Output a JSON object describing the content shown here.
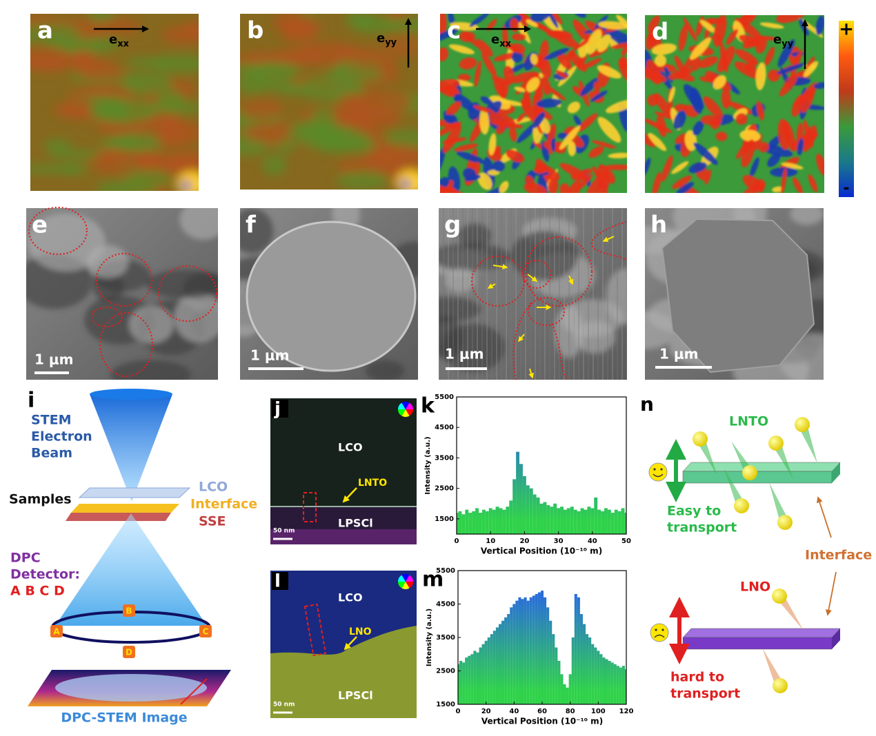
{
  "strain_maps": [
    {
      "label": "a",
      "axis": "e",
      "axis_sub": "xx"
    },
    {
      "label": "b",
      "axis": "e",
      "axis_sub": "yy"
    },
    {
      "label": "c",
      "axis": "e",
      "axis_sub": "xx"
    },
    {
      "label": "d",
      "axis": "e",
      "axis_sub": "yy"
    }
  ],
  "colorbar": {
    "max_label": "+",
    "min_label": "-"
  },
  "sem_images": [
    {
      "label": "e",
      "scale_bar": "1 μm"
    },
    {
      "label": "f",
      "scale_bar": "1 μm"
    },
    {
      "label": "g",
      "scale_bar": "1 μm"
    },
    {
      "label": "h",
      "scale_bar": "1 μm"
    }
  ],
  "schematic_i": {
    "label": "i",
    "beam": [
      "STEM",
      "Electron",
      "Beam"
    ],
    "samples": "Samples",
    "layers": [
      "LCO",
      "Interface",
      "SSE"
    ],
    "detector": [
      "DPC",
      "Detector:",
      "A B C D"
    ],
    "segments": [
      "A",
      "B",
      "C",
      "D"
    ],
    "image": "DPC-STEM Image"
  },
  "tem_images": [
    {
      "label": "j",
      "top": "LCO",
      "interface": "LNTO",
      "bottom": "LPSCl",
      "scale_bar": "50 nm"
    },
    {
      "label": "l",
      "top": "LCO",
      "interface": "LNO",
      "bottom": "LPSCl",
      "scale_bar": "50 nm"
    }
  ],
  "chart_data": [
    {
      "type": "bar",
      "label": "k",
      "xlabel": "Vertical Position (10⁻¹⁰ m)",
      "ylabel": "Intensity (a.u.)",
      "colors": [
        "#2fd24a",
        "#2a6fd8"
      ],
      "x": [
        0,
        1,
        2,
        3,
        4,
        5,
        6,
        7,
        8,
        9,
        10,
        11,
        12,
        13,
        14,
        15,
        16,
        17,
        18,
        19,
        20,
        21,
        22,
        23,
        24,
        25,
        26,
        27,
        28,
        29,
        30,
        31,
        32,
        33,
        34,
        35,
        36,
        37,
        38,
        39,
        40,
        41,
        42,
        43,
        44,
        45,
        46,
        47,
        48,
        49,
        50
      ],
      "values": [
        1700,
        1750,
        1650,
        1800,
        1700,
        1750,
        1850,
        1700,
        1800,
        1750,
        1850,
        1800,
        1900,
        1850,
        1800,
        1900,
        2100,
        2800,
        3700,
        3300,
        2900,
        2600,
        2500,
        2300,
        2200,
        2000,
        2050,
        1950,
        1900,
        2000,
        1850,
        1900,
        1800,
        1850,
        1900,
        1800,
        1750,
        1850,
        1800,
        1900,
        1850,
        2200,
        1800,
        1750,
        1850,
        1800,
        1700,
        1800,
        1750,
        1850,
        1700
      ],
      "xlim": [
        0,
        50
      ],
      "xticks": [
        0,
        10,
        20,
        30,
        40,
        50
      ],
      "ylim": [
        1000,
        5500
      ],
      "yticks": [
        1500,
        2500,
        3500,
        4500,
        5500
      ]
    },
    {
      "type": "bar",
      "label": "m",
      "xlabel": "Vertical Position (10⁻¹⁰ m)",
      "ylabel": "Intensity (a.u.)",
      "colors": [
        "#2fd24a",
        "#2a6fd8"
      ],
      "x": [
        0,
        2,
        4,
        6,
        8,
        10,
        12,
        14,
        16,
        18,
        20,
        22,
        24,
        26,
        28,
        30,
        32,
        34,
        36,
        38,
        40,
        42,
        44,
        46,
        48,
        50,
        52,
        54,
        56,
        58,
        60,
        62,
        64,
        66,
        68,
        70,
        72,
        74,
        76,
        78,
        80,
        82,
        84,
        86,
        88,
        90,
        92,
        94,
        96,
        98,
        100,
        102,
        104,
        106,
        108,
        110,
        112,
        114,
        116,
        118,
        120
      ],
      "values": [
        2700,
        2800,
        2750,
        2900,
        2950,
        3000,
        3100,
        3050,
        3200,
        3300,
        3400,
        3500,
        3600,
        3700,
        3800,
        3900,
        4000,
        4100,
        4200,
        4400,
        4500,
        4600,
        4700,
        4650,
        4700,
        4600,
        4700,
        4750,
        4800,
        4850,
        4900,
        4700,
        4400,
        4000,
        3600,
        3200,
        2800,
        2400,
        2100,
        2000,
        2400,
        3500,
        4800,
        4700,
        4200,
        3900,
        3600,
        3500,
        3300,
        3200,
        3100,
        3000,
        2900,
        2850,
        2800,
        2750,
        2700,
        2650,
        2600,
        2650,
        2550
      ],
      "xlim": [
        0,
        120
      ],
      "xticks": [
        0,
        20,
        40,
        60,
        80,
        100,
        120
      ],
      "ylim": [
        1500,
        5500
      ],
      "yticks": [
        1500,
        2500,
        3500,
        4500,
        5500
      ]
    }
  ],
  "schematic_n": {
    "label": "n",
    "good_layer": "LNTO",
    "good_text": [
      "Easy to",
      "transport"
    ],
    "interface": "Interface",
    "bad_layer": "LNO",
    "bad_text": [
      "hard to",
      "transport"
    ]
  }
}
